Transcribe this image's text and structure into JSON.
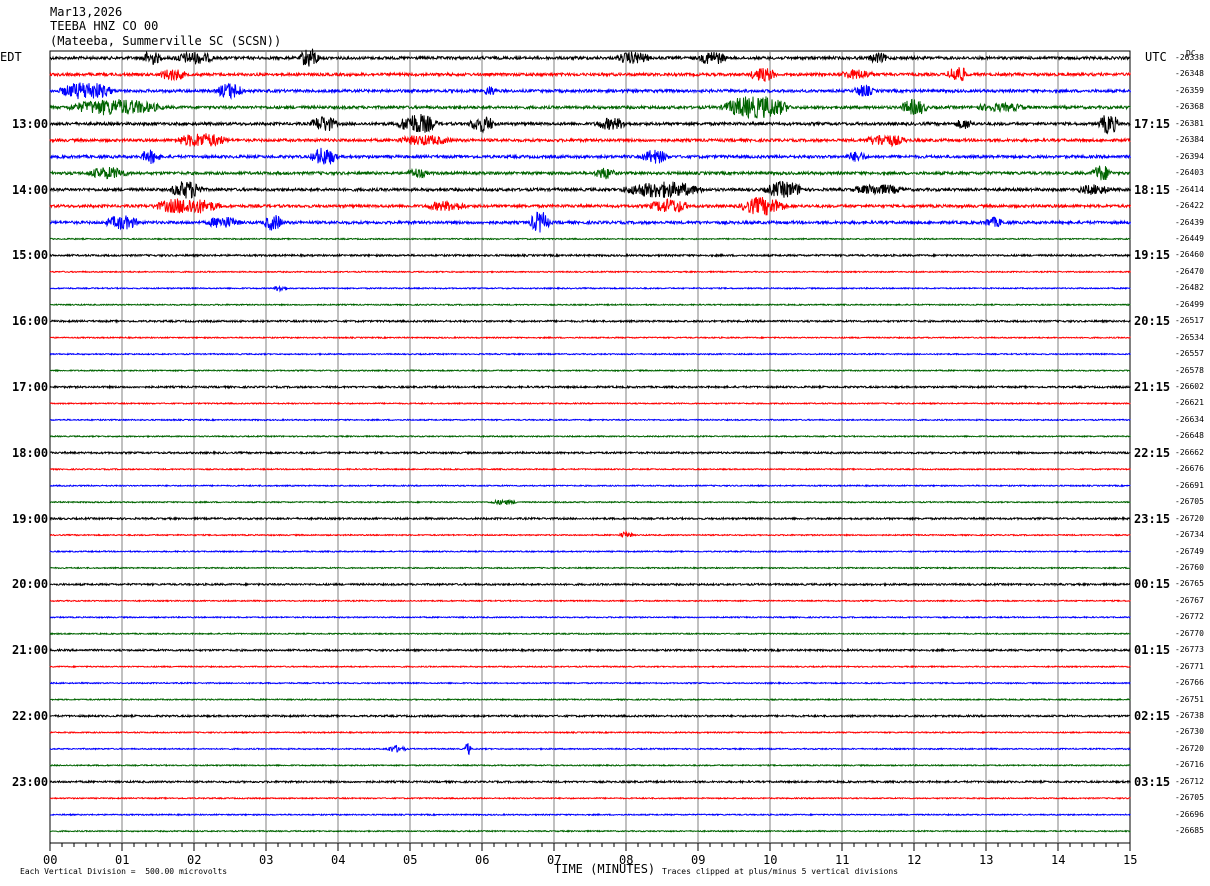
{
  "header": {
    "date": "Mar13,2026",
    "station": "TEEBA HNZ CO 00",
    "location": "(Mateeba, Summerville SC (SCSN))"
  },
  "left_axis_title": "EDT",
  "right_axis_title": "UTC",
  "dc_label": "DC",
  "footer": {
    "scale_note": "Each Vertical Division =  500.00 microvolts",
    "xlabel": "TIME (MINUTES)",
    "clip_note": "Traces clipped at plus/minus 5 vertical divisions"
  },
  "colors": {
    "trace_cycle": [
      "#000000",
      "#ff0000",
      "#0000ff",
      "#006400"
    ],
    "grid": "#808080"
  },
  "chart_data": {
    "type": "line",
    "title": "",
    "xlabel": "TIME (MINUTES)",
    "xlim": [
      0,
      15
    ],
    "x_ticks": [
      "00",
      "01",
      "02",
      "03",
      "04",
      "05",
      "06",
      "07",
      "08",
      "09",
      "10",
      "11",
      "12",
      "13",
      "14",
      "15"
    ],
    "trace_count": 48,
    "left_hour_labels": [
      "13:00",
      "14:00",
      "15:00",
      "16:00",
      "17:00",
      "18:00",
      "19:00",
      "20:00",
      "21:00",
      "22:00",
      "23:00"
    ],
    "right_hour_labels": [
      "17:15",
      "18:15",
      "19:15",
      "20:15",
      "21:15",
      "22:15",
      "23:15",
      "00:15",
      "01:15",
      "02:15",
      "03:15"
    ],
    "hour_label_trace_index": [
      4,
      8,
      12,
      16,
      20,
      24,
      28,
      32,
      36,
      40,
      44
    ],
    "dc_offsets": [
      "-26338",
      "-26348",
      "-26359",
      "-26368",
      "-26381",
      "-26384",
      "-26394",
      "-26403",
      "-26414",
      "-26422",
      "-26439",
      "-26449",
      "-26460",
      "-26470",
      "-26482",
      "-26499",
      "-26517",
      "-26534",
      "-26557",
      "-26578",
      "-26602",
      "-26621",
      "-26634",
      "-26648",
      "-26662",
      "-26676",
      "-26691",
      "-26705",
      "-26720",
      "-26734",
      "-26749",
      "-26760",
      "-26765",
      "-26767",
      "-26772",
      "-26770",
      "-26773",
      "-26771",
      "-26766",
      "-26751",
      "-26738",
      "-26730",
      "-26720",
      "-26716",
      "-26712",
      "-26705",
      "-26696",
      "-26685"
    ]
  }
}
